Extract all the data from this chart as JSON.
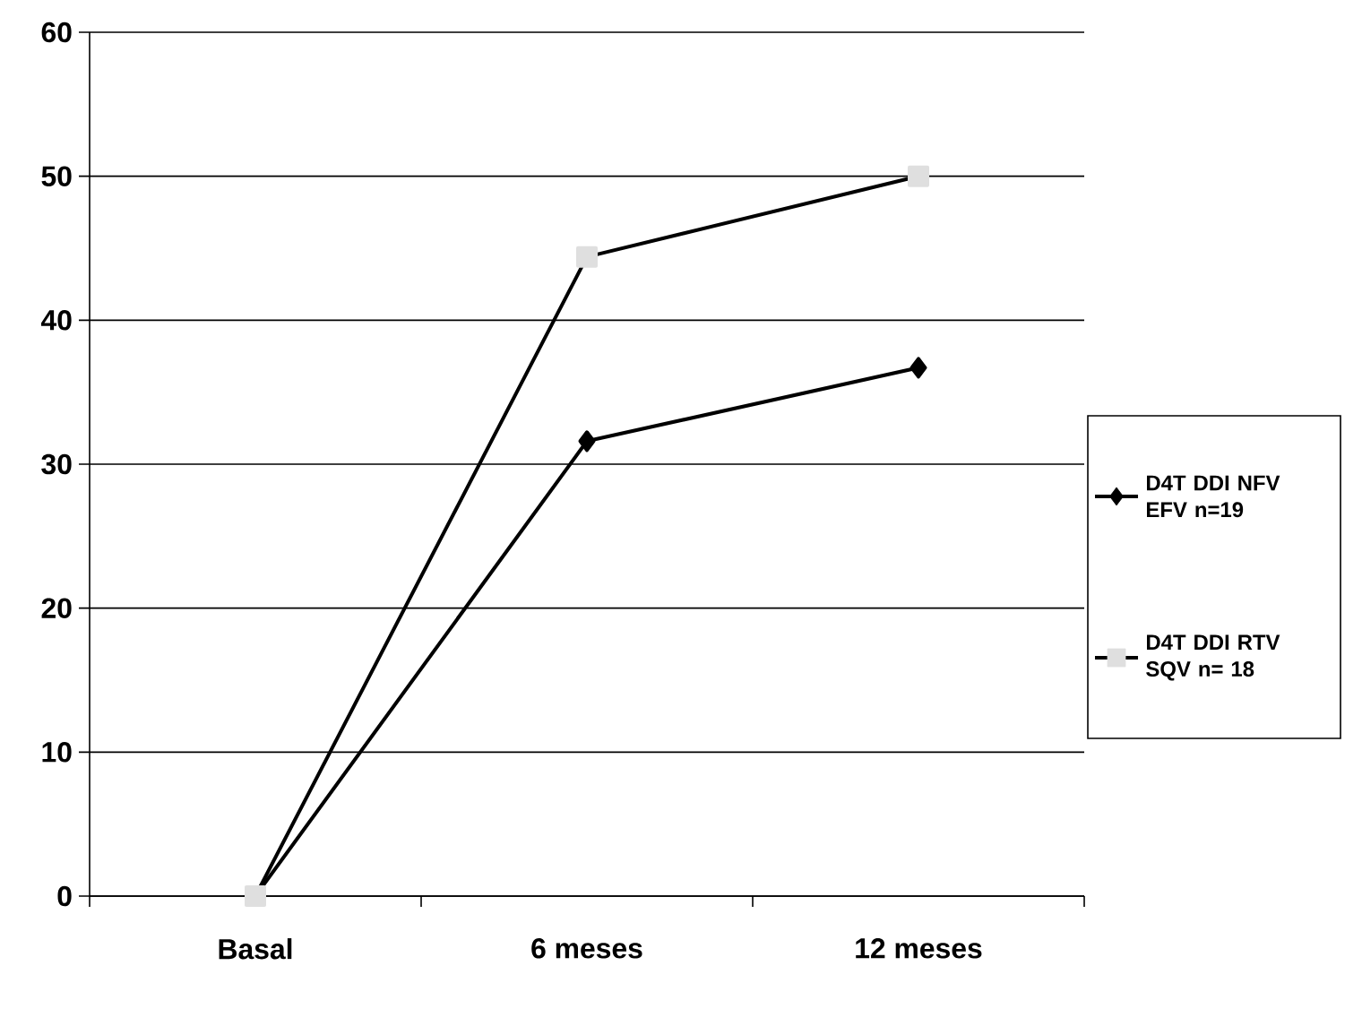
{
  "chart_data": {
    "type": "line",
    "categories": [
      "Basal",
      "6 meses",
      "12 meses"
    ],
    "series": [
      {
        "name": "D4T DDI NFV EFV n=19",
        "color": "#000000",
        "marker": "diamond",
        "values": [
          0,
          31.6,
          36.7
        ]
      },
      {
        "name": "D4T DDI RTV SQV n= 18",
        "color": "#000000",
        "marker": "square",
        "values": [
          0,
          44.4,
          50
        ]
      }
    ],
    "ylim": [
      0,
      60
    ],
    "yticks": [
      0,
      10,
      20,
      30,
      40,
      50,
      60
    ],
    "grid": "y",
    "legend": "right",
    "line_style": "solid"
  }
}
